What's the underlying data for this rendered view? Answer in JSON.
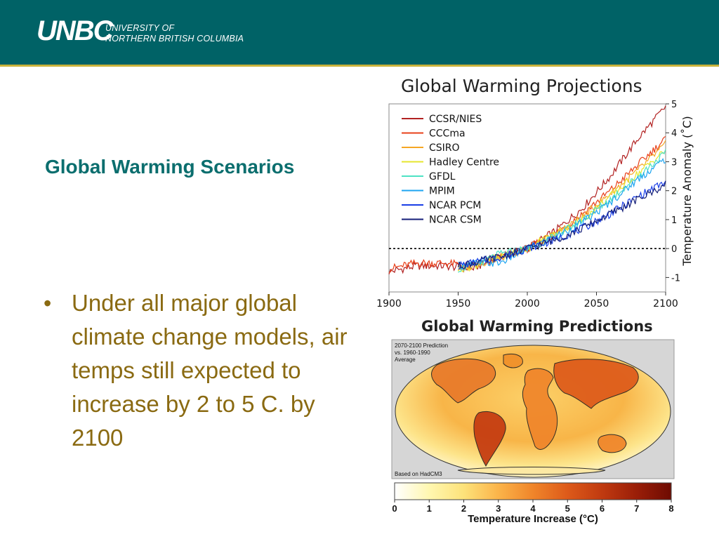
{
  "header": {
    "logo_mark": "UNBC",
    "logo_line1": "UNIVERSITY OF",
    "logo_line2": "NORTHERN BRITISH COLUMBIA"
  },
  "slide": {
    "title": "Global Warming Scenarios",
    "bullets": [
      "Under all major global climate change models, air temps still expected to increase by 2 to 5 C. by 2100"
    ]
  },
  "colors": {
    "header_bg": "#006266",
    "header_rule": "#c9b23a",
    "title": "#0b6e6e",
    "bullet_text": "#8a6a12"
  },
  "chart_data": [
    {
      "type": "line",
      "title": "Global Warming Projections",
      "xlabel": "",
      "ylabel": "Temperature Anomaly (˚C)",
      "xlim": [
        1900,
        2100
      ],
      "ylim": [
        -1.5,
        5
      ],
      "x_ticks": [
        "1900",
        "1950",
        "2000",
        "2050",
        "2100"
      ],
      "y_ticks": [
        "-1",
        "0",
        "1",
        "2",
        "3",
        "4",
        "5"
      ],
      "reference_line": 0,
      "legend": "top-left",
      "series": [
        {
          "name": "CCSR/NIES",
          "color": "#b22222",
          "x": [
            1900,
            1920,
            1940,
            1960,
            1980,
            2000,
            2020,
            2040,
            2060,
            2080,
            2100
          ],
          "values": [
            -0.8,
            -0.6,
            -0.6,
            -0.7,
            -0.3,
            0.0,
            0.6,
            1.4,
            2.5,
            3.8,
            4.9
          ]
        },
        {
          "name": "CCCma",
          "color": "#e8401a",
          "x": [
            1900,
            1920,
            1940,
            1960,
            1980,
            2000,
            2020,
            2040,
            2060,
            2080,
            2100
          ],
          "values": [
            -0.7,
            -0.5,
            -0.5,
            -0.6,
            -0.3,
            0.0,
            0.5,
            1.2,
            2.0,
            2.9,
            3.8
          ]
        },
        {
          "name": "CSIRO",
          "color": "#f5a623",
          "x": [
            1950,
            1960,
            1980,
            2000,
            2020,
            2040,
            2060,
            2080,
            2100
          ],
          "values": [
            -0.7,
            -0.6,
            -0.3,
            0.0,
            0.5,
            1.1,
            1.9,
            2.7,
            3.6
          ]
        },
        {
          "name": "Hadley Centre",
          "color": "#e6e62e",
          "x": [
            1950,
            1960,
            1980,
            2000,
            2020,
            2040,
            2060,
            2080,
            2100
          ],
          "values": [
            -0.7,
            -0.6,
            -0.3,
            0.0,
            0.5,
            1.0,
            1.8,
            2.6,
            3.4
          ]
        },
        {
          "name": "GFDL",
          "color": "#4ee2c4",
          "x": [
            1950,
            1960,
            1980,
            2000,
            2020,
            2040,
            2060,
            2080,
            2100
          ],
          "values": [
            -0.7,
            -0.6,
            -0.2,
            0.0,
            0.4,
            1.0,
            1.7,
            2.5,
            3.3
          ]
        },
        {
          "name": "MPIM",
          "color": "#1ea5f0",
          "x": [
            1950,
            1960,
            1980,
            2000,
            2020,
            2040,
            2060,
            2080,
            2100
          ],
          "values": [
            -0.6,
            -0.5,
            -0.5,
            0.0,
            0.4,
            0.9,
            1.6,
            2.4,
            3.1
          ]
        },
        {
          "name": "NCAR PCM",
          "color": "#1a3ee6",
          "x": [
            1950,
            1960,
            1980,
            2000,
            2020,
            2040,
            2060,
            2080,
            2100
          ],
          "values": [
            -0.6,
            -0.5,
            -0.3,
            0.0,
            0.3,
            0.7,
            1.2,
            1.8,
            2.3
          ]
        },
        {
          "name": "NCAR CSM",
          "color": "#141e78",
          "x": [
            1950,
            1960,
            1980,
            2000,
            2020,
            2040,
            2060,
            2080,
            2100
          ],
          "values": [
            -0.6,
            -0.5,
            -0.3,
            0.0,
            0.3,
            0.7,
            1.2,
            1.7,
            2.2
          ]
        }
      ]
    },
    {
      "type": "heatmap",
      "title": "Global Warming Predictions",
      "annotation_lines": [
        "2070-2100 Prediction",
        "vs. 1960-1990",
        "Average"
      ],
      "source_note": "Based on HadCM3",
      "colorbar_label": "Temperature Increase (°C)",
      "colorbar_ticks": [
        "0",
        "1",
        "2",
        "3",
        "4",
        "5",
        "6",
        "7",
        "8"
      ],
      "colorbar_range": [
        0,
        8
      ],
      "colorbar_colors": [
        "#ffffff",
        "#fff7b0",
        "#fde27a",
        "#fbb44a",
        "#f0852a",
        "#dd5a1a",
        "#c03a10",
        "#9a1e08",
        "#6e0b02"
      ]
    }
  ]
}
